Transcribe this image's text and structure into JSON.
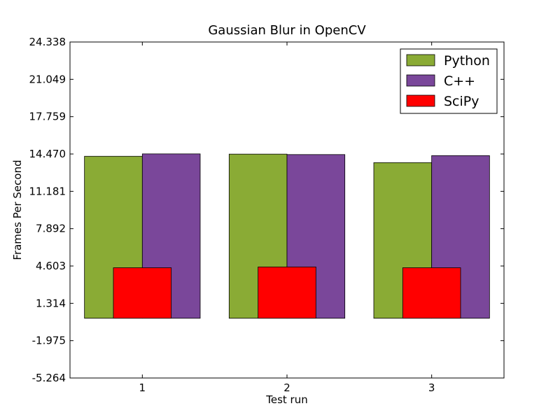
{
  "chart_data": {
    "type": "bar",
    "title": "Gaussian Blur in OpenCV",
    "xlabel": "Test run",
    "ylabel": "Frames Per Second",
    "categories": [
      "1",
      "2",
      "3"
    ],
    "series": [
      {
        "name": "Python",
        "values": [
          14.27,
          14.46,
          13.71
        ],
        "color": "#8aab35"
      },
      {
        "name": "C++",
        "values": [
          14.48,
          14.42,
          14.33
        ],
        "color": "#7a479a"
      },
      {
        "name": "SciPy",
        "values": [
          4.45,
          4.52,
          4.45
        ],
        "color": "#ff0000"
      }
    ],
    "bar_bottom": 0.0,
    "ylim": [
      -5.264,
      24.338
    ],
    "yticks": [
      "24.338",
      "21.049",
      "17.759",
      "14.470",
      "11.181",
      "7.892",
      "4.603",
      "1.314",
      "-1.975",
      "-5.264"
    ],
    "legend_position": "top-right",
    "grid": false
  }
}
